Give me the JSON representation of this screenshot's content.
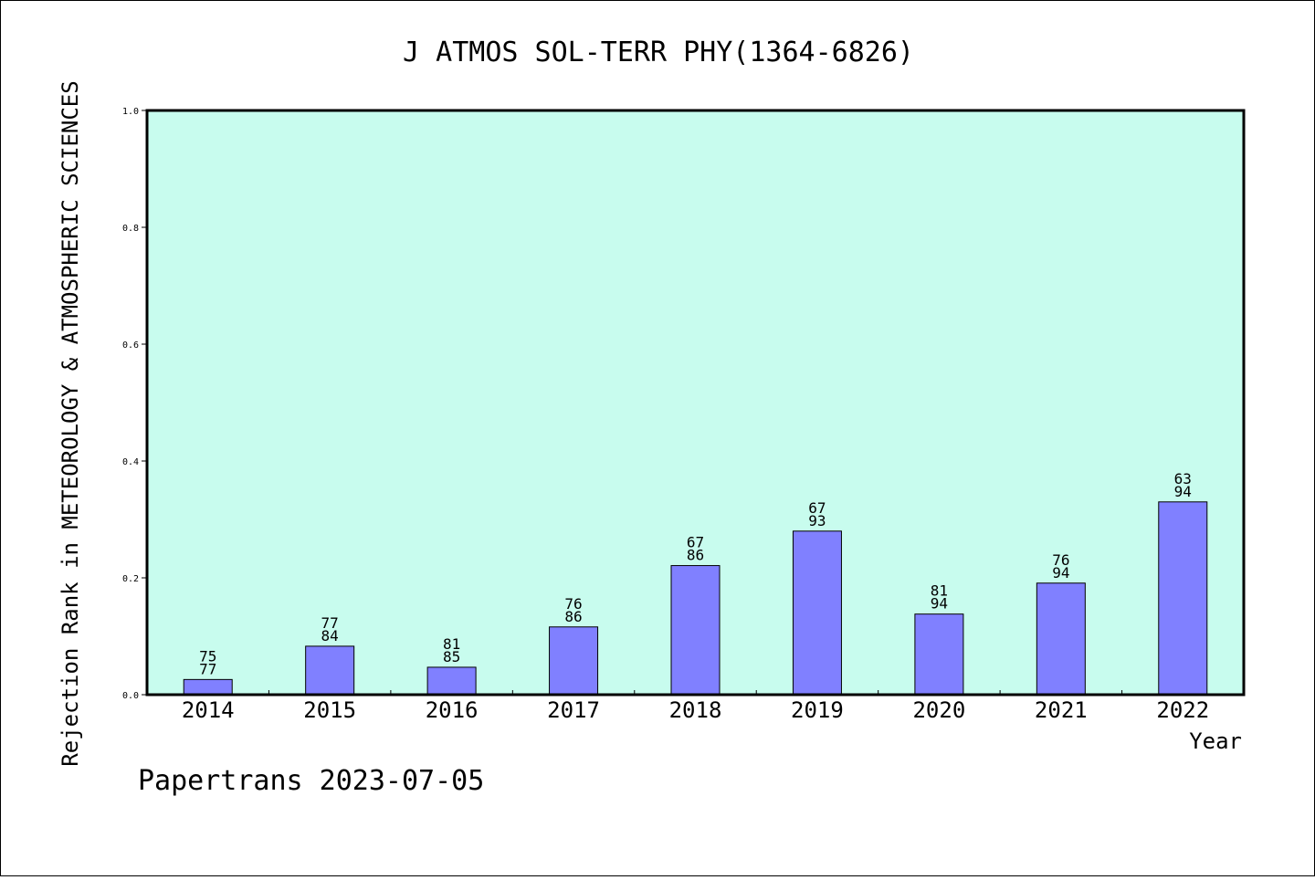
{
  "chart_data": {
    "type": "bar",
    "title": "J ATMOS SOL-TERR PHY(1364-6826)",
    "xlabel": "Year",
    "ylabel": "Rejection Rank in METEOROLOGY & ATMOSPHERIC SCIENCES",
    "ylim": [
      0,
      1.0
    ],
    "yticks": [
      "0.0",
      "0.2",
      "0.4",
      "0.6",
      "0.8",
      "1.0"
    ],
    "categories": [
      "2014",
      "2015",
      "2016",
      "2017",
      "2018",
      "2019",
      "2020",
      "2021",
      "2022"
    ],
    "values": [
      0.026,
      0.083,
      0.047,
      0.116,
      0.221,
      0.28,
      0.138,
      0.191,
      0.33
    ],
    "labels": [
      [
        "75",
        "77"
      ],
      [
        "77",
        "84"
      ],
      [
        "81",
        "85"
      ],
      [
        "76",
        "86"
      ],
      [
        "67",
        "86"
      ],
      [
        "67",
        "93"
      ],
      [
        "81",
        "94"
      ],
      [
        "76",
        "94"
      ],
      [
        "63",
        "94"
      ]
    ],
    "bar_color": "#8080ff",
    "plot_background": "#c8fcee",
    "grid": false
  },
  "footer": "Papertrans 2023-07-05"
}
